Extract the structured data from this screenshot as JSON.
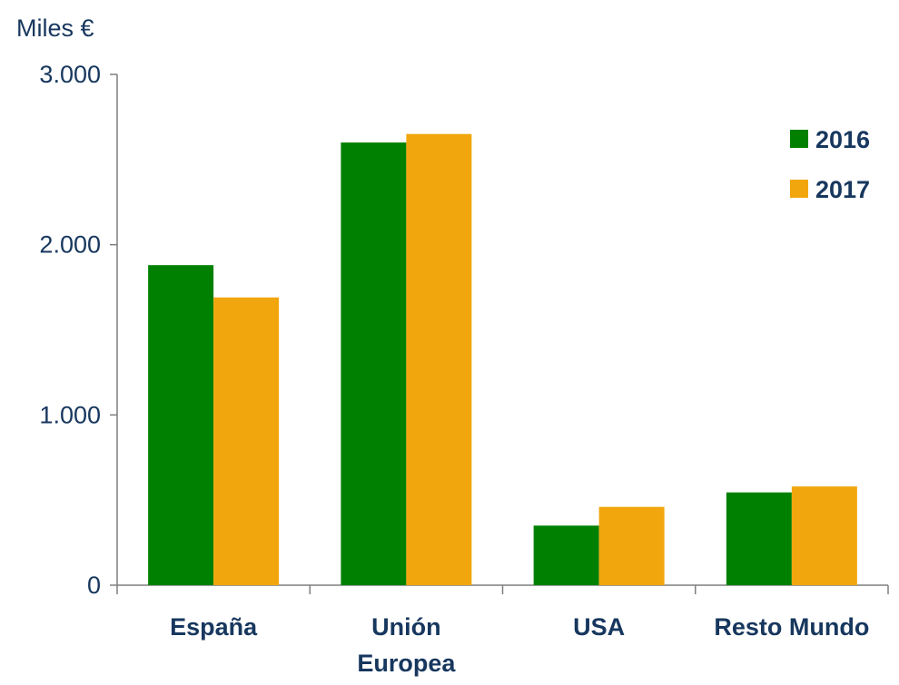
{
  "chart_data": {
    "type": "bar",
    "unit_label": "Miles €",
    "categories": [
      [
        "España"
      ],
      [
        "Unión",
        "Europea"
      ],
      [
        "USA"
      ],
      [
        "Resto Mundo"
      ]
    ],
    "series": [
      {
        "name": "2016",
        "color": "#008000",
        "values": [
          1880,
          2600,
          350,
          545
        ]
      },
      {
        "name": "2017",
        "color": "#f2a60d",
        "values": [
          1690,
          2650,
          460,
          580
        ]
      }
    ],
    "yticks": [
      {
        "value": 0,
        "label": "0"
      },
      {
        "value": 1000,
        "label": "1.000"
      },
      {
        "value": 2000,
        "label": "2.000"
      },
      {
        "value": 3000,
        "label": "3.000"
      }
    ],
    "ylim": [
      0,
      3000
    ],
    "legend_position": "top-right",
    "grid": false
  }
}
